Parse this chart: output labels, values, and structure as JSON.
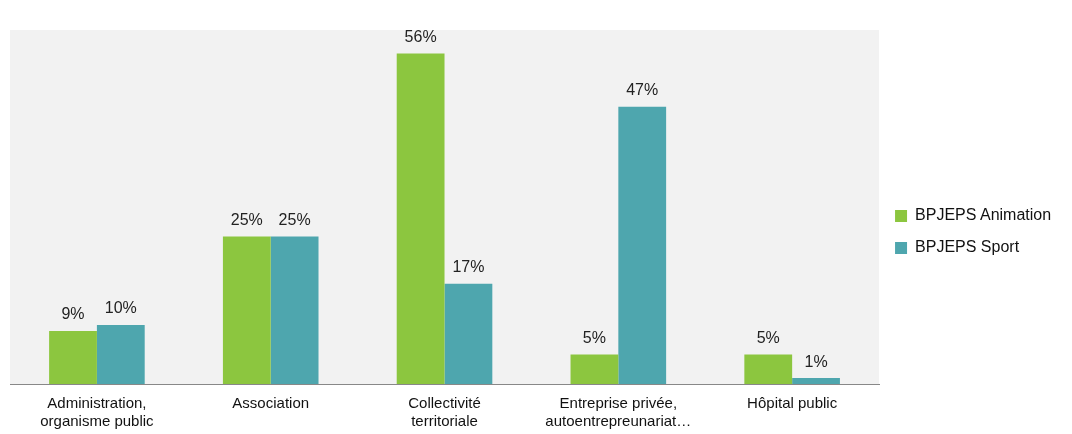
{
  "chart_data": {
    "type": "bar",
    "categories": [
      "Administration, organisme public",
      "Association",
      "Collectivité territoriale",
      "Entreprise privée, autoentrepreunariat…",
      "Hôpital public"
    ],
    "series": [
      {
        "name": "BPJEPS Animation",
        "color": "#8cc63f",
        "values": [
          9,
          25,
          56,
          5,
          5
        ],
        "value_labels": [
          "9%",
          "25%",
          "56%",
          "5%",
          "5%"
        ]
      },
      {
        "name": "BPJEPS Sport",
        "color": "#4ea6ae",
        "values": [
          10,
          25,
          17,
          47,
          1
        ],
        "value_labels": [
          "10%",
          "25%",
          "17%",
          "47%",
          "1%"
        ]
      }
    ],
    "legend": "right",
    "tick_labels": "x"
  }
}
